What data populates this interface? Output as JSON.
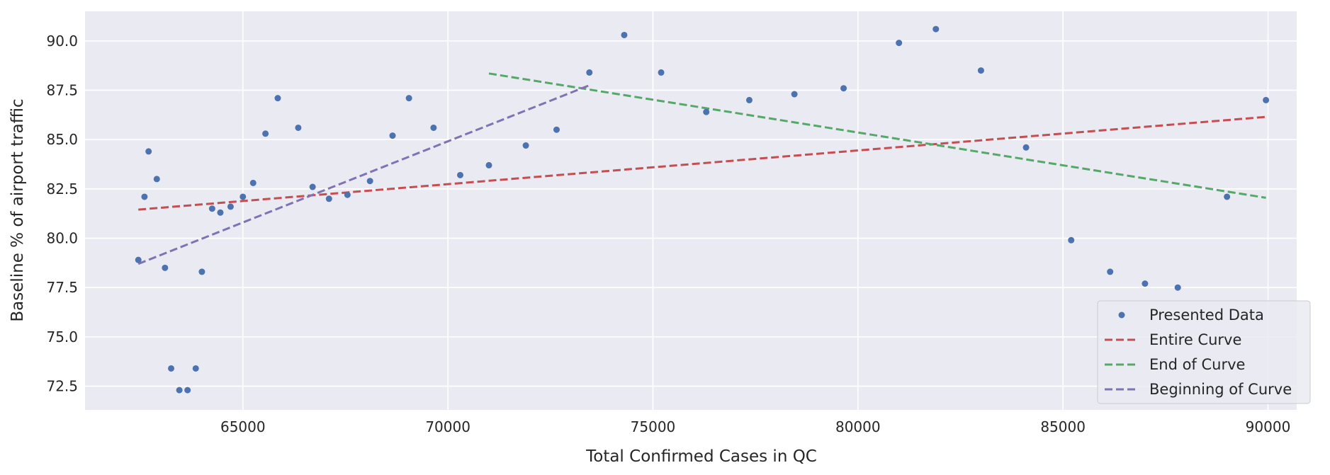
{
  "chart_data": {
    "type": "scatter",
    "xlabel": "Total Confirmed Cases in QC",
    "ylabel": "Baseline % of airport traffic",
    "xlim": [
      61150,
      90700
    ],
    "ylim": [
      71.3,
      91.5
    ],
    "xticks": [
      65000,
      70000,
      75000,
      80000,
      85000,
      90000
    ],
    "yticks": [
      72.5,
      75.0,
      77.5,
      80.0,
      82.5,
      85.0,
      87.5,
      90.0
    ],
    "grid": true,
    "legend_position": "bottom-right",
    "colors": {
      "background": "#EAEAF2",
      "grid": "#FFFFFF",
      "points": "#4C72B0",
      "entire": "#C44E52",
      "end": "#55A868",
      "beginning": "#8172B3"
    },
    "legend": [
      {
        "label": "Presented Data",
        "style": "marker",
        "color": "#4C72B0"
      },
      {
        "label": "Entire Curve",
        "style": "dashed",
        "color": "#C44E52"
      },
      {
        "label": "End of Curve",
        "style": "dashed",
        "color": "#55A868"
      },
      {
        "label": "Beginning of Curve",
        "style": "dashed",
        "color": "#8172B3"
      }
    ],
    "series": [
      {
        "name": "Presented Data",
        "kind": "points",
        "x": [
          62450,
          62600,
          62700,
          62900,
          63100,
          63250,
          63450,
          63650,
          63850,
          64000,
          64250,
          64450,
          64700,
          65000,
          65250,
          65550,
          65850,
          66350,
          66700,
          67100,
          67550,
          68100,
          68650,
          69050,
          69650,
          70300,
          71000,
          71900,
          72650,
          73450,
          74300,
          75200,
          76300,
          77350,
          78450,
          79650,
          81000,
          81900,
          83000,
          84100,
          85200,
          86150,
          87000,
          87800,
          89000,
          89950
        ],
        "y": [
          78.9,
          82.1,
          84.4,
          83.0,
          78.5,
          73.4,
          72.3,
          72.3,
          73.4,
          78.3,
          81.5,
          81.3,
          81.6,
          82.1,
          82.8,
          85.3,
          87.1,
          85.6,
          82.6,
          82.0,
          82.2,
          82.9,
          85.2,
          87.1,
          85.6,
          83.2,
          83.7,
          84.7,
          85.5,
          88.4,
          90.3,
          88.4,
          86.4,
          87.0,
          87.3,
          87.6,
          89.9,
          90.6,
          88.5,
          84.6,
          79.9,
          78.3,
          77.7,
          77.5,
          82.1,
          87.0
        ]
      },
      {
        "name": "Entire Curve",
        "kind": "line",
        "x": [
          62450,
          89950
        ],
        "y": [
          81.45,
          86.15
        ]
      },
      {
        "name": "End of Curve",
        "kind": "line",
        "x": [
          71000,
          89950
        ],
        "y": [
          88.35,
          82.05
        ]
      },
      {
        "name": "Beginning of Curve",
        "kind": "line",
        "x": [
          62450,
          73450
        ],
        "y": [
          78.7,
          87.75
        ]
      }
    ]
  }
}
